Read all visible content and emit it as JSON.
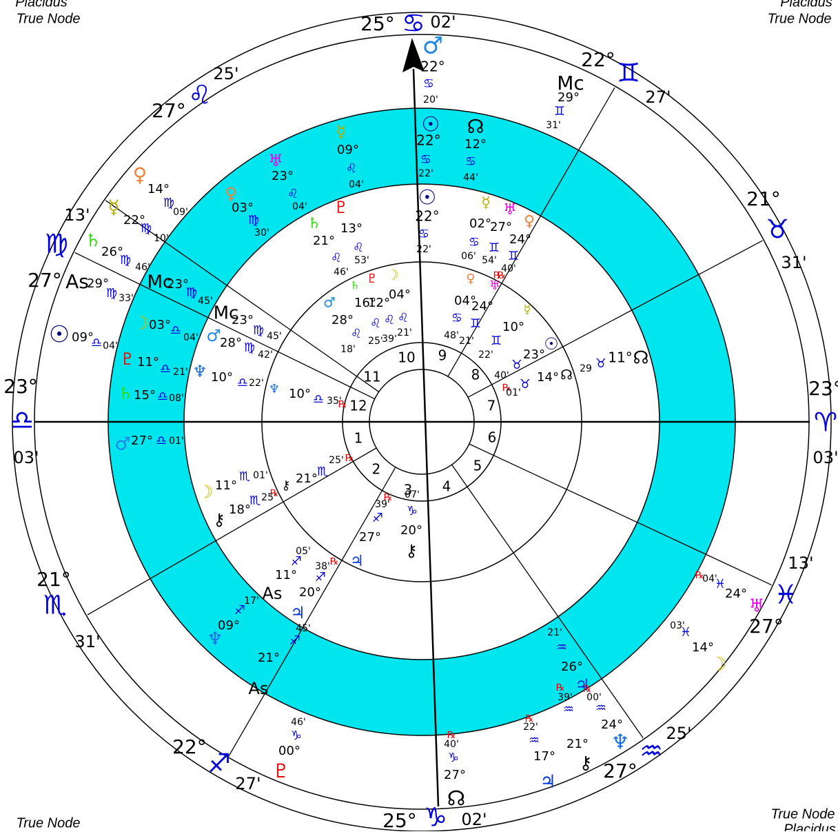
{
  "corners": [
    "Placidus",
    "True Node",
    "Placidus",
    "True Node",
    "True Node",
    "True Node",
    "Placidus"
  ],
  "houses": [
    "1",
    "2",
    "3",
    "4",
    "5",
    "6",
    "7",
    "8",
    "9",
    "10",
    "11",
    "12"
  ],
  "labels": [
    "25°",
    "♋",
    "02'",
    "22°",
    "♊",
    "27'",
    "21°",
    "♉",
    "31'",
    "23°",
    "♈",
    "03'",
    "13'",
    "♓",
    "27°",
    "25'",
    "♒",
    "27°",
    "25°",
    "♑",
    "02'",
    "22°",
    "♐",
    "27'",
    "21°",
    "♏",
    "31'",
    "23°",
    "♎",
    "03'",
    "13'",
    "♍",
    "27°",
    "27°",
    "♌",
    "25'",
    "♂",
    "22°",
    "♋",
    "20'",
    "Mc",
    "29°",
    "♊",
    "31'",
    "♀",
    "14°",
    "♍",
    "09'",
    "☿",
    "22°",
    "♍",
    "10'",
    "♄",
    "26°",
    "♍",
    "46'",
    "As",
    "29°",
    "♍",
    "33'",
    "☉",
    "09°",
    "♎",
    "04'",
    "☽",
    "03°",
    "♎",
    "04'",
    "Mc",
    "23°",
    "♍",
    "45'",
    "♇",
    "11°",
    "♎",
    "21'",
    "♄",
    "15°",
    "♎",
    "08'",
    "♂",
    "27°",
    "♎",
    "01'",
    "♀",
    "03°",
    "♍",
    "30'",
    "♅",
    "23°",
    "♌",
    "04'",
    "☿",
    "09°",
    "♌",
    "04'",
    "☉",
    "22°",
    "♋",
    "22'",
    "☊",
    "12°",
    "♋",
    "44'",
    "As",
    "20°",
    "♃",
    "45'",
    "♐",
    "21°",
    "As",
    "♆",
    "09°",
    "♐",
    "17'",
    "07'",
    "♑",
    "20°",
    "⚷",
    "21'",
    "♒",
    "26°",
    "♃",
    "℞",
    "00'",
    "♒",
    "24°",
    "♆",
    "℞",
    "39'",
    "♒",
    "21°",
    "⚷",
    "℞",
    "22'",
    "♒",
    "17°",
    "♃",
    "℞",
    "40'",
    "♑",
    "27°",
    "☊",
    "46'",
    "♑",
    "00°",
    "♇",
    "℞",
    "04'",
    "♓",
    "24°",
    "♅",
    "03'",
    "♓",
    "14°",
    "☽",
    "♇",
    "13°",
    "♄",
    "21°",
    "♌",
    "46'",
    "♌",
    "53'",
    "☉",
    "22°",
    "♋",
    "22'",
    "☿",
    "02°",
    "♅",
    "27°",
    "♀",
    "24°",
    "♋",
    "06'",
    "♊",
    "54'",
    "♊",
    "40'",
    "℞",
    "Mc",
    "23°",
    "♍",
    "45'",
    "♂",
    "28°",
    "♍",
    "42'",
    "♆",
    "10°",
    "♎",
    "22'",
    "♆",
    "10°",
    "♎",
    "35'",
    "℞",
    "♂",
    "28°",
    "♌",
    "18'",
    "♄",
    "16°",
    "♇",
    "12°",
    "☽",
    "04°",
    "♌",
    "♌",
    "♌",
    "25'",
    "39'",
    "21'",
    "♀",
    "℞",
    "♅",
    "04°",
    "24°",
    "♋",
    "♊",
    "48'",
    "21'",
    "☿",
    "10°",
    "♊",
    "22'",
    "☉",
    "23°",
    "♉",
    "40'",
    "14°",
    "♉",
    "℞",
    "01'",
    "☊",
    "29",
    "♉",
    "11°",
    "☊",
    "11°",
    "♏",
    "01'",
    "☽",
    "⚷",
    "18°",
    "♏",
    "25'",
    "℞",
    "⚷",
    "21°",
    "♏",
    "25'",
    "℞",
    "39'",
    "℞",
    "♐",
    "27°",
    "♃",
    "05'",
    "♐",
    "11°",
    "38'",
    "℞",
    "♐"
  ]
}
